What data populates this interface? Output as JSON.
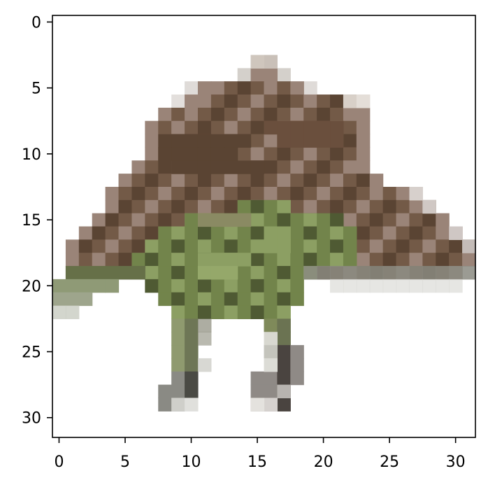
{
  "image": {
    "grid_size": 32,
    "subject": "pixelated-stegosaurus-toy",
    "colors": {
      "background": "#ffffff",
      "plate_dark": "#5a4433",
      "plate_mid": "#735a47",
      "plate_light": "#9a8478",
      "body_green": "#72844b",
      "body_light": "#8c9f63",
      "body_dark": "#4f5a33",
      "leg_gray": "#8a8a7a",
      "foot_dark": "#4a4440",
      "edge_gray": "#b8b0a8"
    }
  },
  "axes": {
    "x_ticks": [
      "0",
      "5",
      "10",
      "15",
      "20",
      "25",
      "30"
    ],
    "y_ticks": [
      "0",
      "5",
      "10",
      "15",
      "20",
      "25",
      "30"
    ]
  }
}
